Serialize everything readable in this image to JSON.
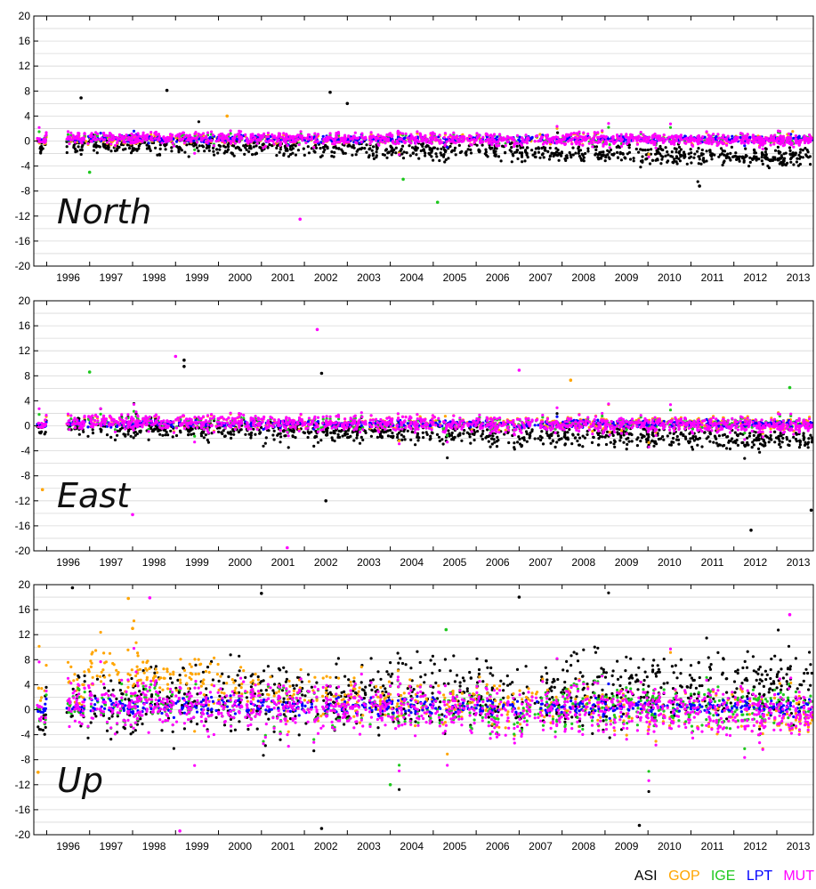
{
  "chart_data": [
    {
      "type": "scatter",
      "title": "North",
      "xlim": [
        1995.7,
        2013.85
      ],
      "ylim": [
        -20,
        20
      ],
      "yticks": [
        20,
        16,
        12,
        8,
        4,
        0,
        -4,
        -8,
        -12,
        -16,
        -20
      ],
      "xticks": [
        "1996",
        "1997",
        "1998",
        "1999",
        "2000",
        "2001",
        "2002",
        "2003",
        "2004",
        "2005",
        "2006",
        "2007",
        "2008",
        "2009",
        "2010",
        "2011",
        "2012",
        "2013"
      ],
      "data_gap": [
        1996.0,
        1996.45
      ],
      "series": [
        {
          "name": "ASI",
          "trend_start": -0.4,
          "trend_end": -2.6,
          "spread": 1.0,
          "outliers": [
            [
              1998.8,
              8.1
            ],
            [
              2002.6,
              7.8
            ],
            [
              2003.0,
              6.0
            ],
            [
              2011.2,
              -7.2
            ],
            [
              1996.8,
              6.9
            ]
          ]
        },
        {
          "name": "GOP",
          "trend_start": 0.2,
          "trend_end": 0.3,
          "spread": 0.6,
          "outliers": [
            [
              2000.2,
              4.0
            ]
          ]
        },
        {
          "name": "IGE",
          "trend_start": 0.3,
          "trend_end": 0.4,
          "spread": 0.5,
          "outliers": [
            [
              2004.3,
              -6.1
            ],
            [
              2005.1,
              -9.8
            ],
            [
              1997.0,
              -5.0
            ]
          ]
        },
        {
          "name": "LPT",
          "trend_start": 0.3,
          "trend_end": 0.3,
          "spread": 0.4,
          "outliers": []
        },
        {
          "name": "MUT",
          "trend_start": 0.5,
          "trend_end": 0.2,
          "spread": 0.7,
          "outliers": [
            [
              2001.9,
              -12.5
            ]
          ]
        }
      ]
    },
    {
      "type": "scatter",
      "title": "East",
      "xlim": [
        1995.7,
        2013.85
      ],
      "ylim": [
        -20,
        20
      ],
      "yticks": [
        20,
        16,
        12,
        8,
        4,
        0,
        -4,
        -8,
        -12,
        -16,
        -20
      ],
      "xticks": [
        "1996",
        "1997",
        "1998",
        "1999",
        "2000",
        "2001",
        "2002",
        "2003",
        "2004",
        "2005",
        "2006",
        "2007",
        "2008",
        "2009",
        "2010",
        "2011",
        "2012",
        "2013"
      ],
      "data_gap": [
        1996.0,
        1996.45
      ],
      "series": [
        {
          "name": "ASI",
          "trend_start": 0.0,
          "trend_end": -2.3,
          "spread": 1.2,
          "outliers": [
            [
              1999.2,
              10.5
            ],
            [
              1999.2,
              9.5
            ],
            [
              2002.4,
              8.4
            ],
            [
              2012.4,
              -16.7
            ],
            [
              2013.8,
              -13.5
            ],
            [
              2002.5,
              -12.0
            ]
          ]
        },
        {
          "name": "GOP",
          "trend_start": 0.5,
          "trend_end": 0.5,
          "spread": 0.8,
          "outliers": [
            [
              1995.9,
              -10.2
            ],
            [
              2008.2,
              7.3
            ]
          ]
        },
        {
          "name": "IGE",
          "trend_start": 0.4,
          "trend_end": 0.4,
          "spread": 0.6,
          "outliers": [
            [
              1997.0,
              8.6
            ],
            [
              2013.3,
              6.1
            ]
          ]
        },
        {
          "name": "LPT",
          "trend_start": 0.3,
          "trend_end": 0.3,
          "spread": 0.4,
          "outliers": []
        },
        {
          "name": "MUT",
          "trend_start": 0.6,
          "trend_end": 0.1,
          "spread": 0.9,
          "outliers": [
            [
              2002.3,
              15.4
            ],
            [
              1999.0,
              11.1
            ],
            [
              1998.0,
              -14.2
            ],
            [
              2001.6,
              -19.5
            ],
            [
              2007.0,
              8.9
            ]
          ]
        }
      ]
    },
    {
      "type": "scatter",
      "title": "Up",
      "xlim": [
        1995.7,
        2013.85
      ],
      "ylim": [
        -20,
        20
      ],
      "yticks": [
        20,
        16,
        12,
        8,
        4,
        0,
        -4,
        -8,
        -12,
        -16,
        -20
      ],
      "xticks": [
        "1996",
        "1997",
        "1998",
        "1999",
        "2000",
        "2001",
        "2002",
        "2003",
        "2004",
        "2005",
        "2006",
        "2007",
        "2008",
        "2009",
        "2010",
        "2011",
        "2012",
        "2013"
      ],
      "data_gap": [
        1996.0,
        1996.45
      ],
      "series": [
        {
          "name": "ASI",
          "trend_start": 0.5,
          "trend_end": 4.5,
          "spread": 4.2,
          "outliers": [
            [
              1996.6,
              19.5
            ],
            [
              2001.0,
              18.6
            ],
            [
              2007.0,
              18.0
            ],
            [
              2002.4,
              -19.0
            ],
            [
              2009.8,
              -18.5
            ]
          ]
        },
        {
          "name": "GOP",
          "trend_start": 4.0,
          "trend_end": -1.0,
          "spread": 2.6,
          "outliers": [
            [
              1997.9,
              17.8
            ],
            [
              1995.8,
              -10.0
            ],
            [
              1998.0,
              13.0
            ]
          ]
        },
        {
          "name": "IGE",
          "trend_start": 0.5,
          "trend_end": 0.5,
          "spread": 2.6,
          "outliers": [
            [
              2005.3,
              12.8
            ],
            [
              2004.0,
              -12.0
            ]
          ]
        },
        {
          "name": "LPT",
          "trend_start": 0.5,
          "trend_end": 0.5,
          "spread": 1.0,
          "outliers": []
        },
        {
          "name": "MUT",
          "trend_start": 1.0,
          "trend_end": -0.5,
          "spread": 2.8,
          "outliers": [
            [
              1998.4,
              17.9
            ],
            [
              1999.1,
              -19.4
            ],
            [
              2013.3,
              15.2
            ]
          ]
        }
      ]
    }
  ],
  "colors": {
    "ASI": "#000000",
    "GOP": "#ffa500",
    "IGE": "#1ec81e",
    "LPT": "#0000ff",
    "MUT": "#ff00ff"
  },
  "legend": {
    "asi": "ASI",
    "gop": "GOP",
    "ige": "IGE",
    "lpt": "LPT",
    "mut": "MUT"
  }
}
